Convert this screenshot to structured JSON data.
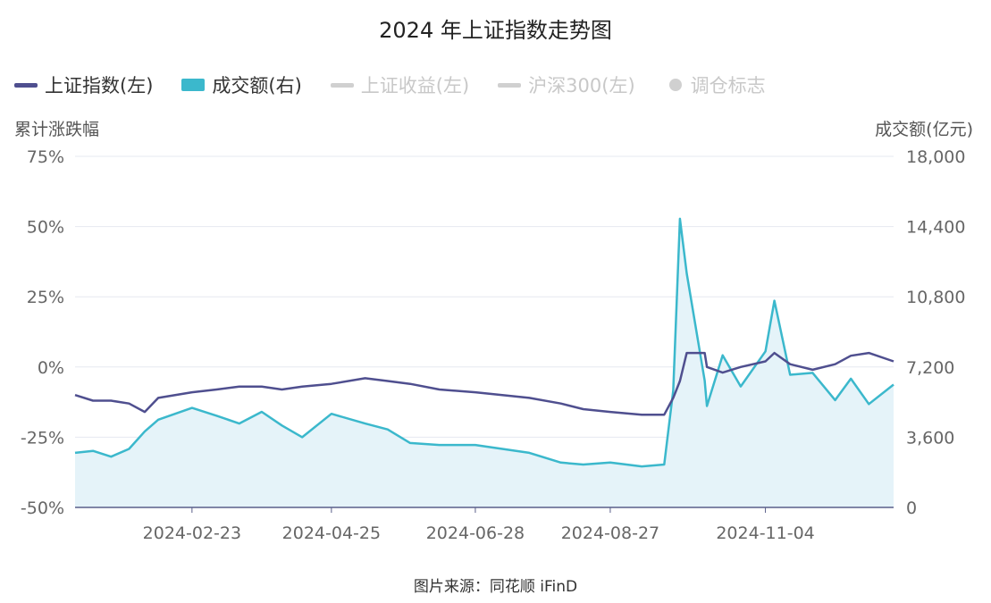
{
  "title": "2024 年上证指数走势图",
  "source": "图片来源：同花顺 iFinD",
  "legend": [
    {
      "label": "上证指数(左)",
      "color": "#4f4f8f",
      "kind": "line",
      "active": true
    },
    {
      "label": "成交额(右)",
      "color": "#3bb8cc",
      "kind": "rect",
      "active": true
    },
    {
      "label": "上证收益(左)",
      "color": "#d0d0d0",
      "kind": "line",
      "active": false
    },
    {
      "label": "沪深300(左)",
      "color": "#d0d0d0",
      "kind": "line",
      "active": false
    },
    {
      "label": "调仓标志",
      "color": "#d0d0d0",
      "kind": "dot",
      "active": false
    }
  ],
  "chart_data": {
    "type": "line",
    "xlabel": "",
    "ylabel_left": "累计涨跌幅",
    "ylabel_right": "成交额(亿元)",
    "ylim_left": [
      -0.5,
      0.75
    ],
    "ylim_right": [
      0,
      18000
    ],
    "left_ticks": [
      "75%",
      "50%",
      "25%",
      "0%",
      "-25%",
      "-50%"
    ],
    "right_ticks": [
      "18,000",
      "14,400",
      "10,800",
      "7,200",
      "3,600",
      "0"
    ],
    "x_tick_labels": [
      "2024-02-23",
      "2024-04-25",
      "2024-06-28",
      "2024-08-27",
      "2024-11-04"
    ],
    "grid": true,
    "x": [
      "2024-01-02",
      "2024-01-10",
      "2024-01-18",
      "2024-01-26",
      "2024-02-02",
      "2024-02-08",
      "2024-02-23",
      "2024-03-05",
      "2024-03-15",
      "2024-03-25",
      "2024-04-03",
      "2024-04-12",
      "2024-04-25",
      "2024-05-10",
      "2024-05-20",
      "2024-05-30",
      "2024-06-12",
      "2024-06-28",
      "2024-07-10",
      "2024-07-22",
      "2024-08-05",
      "2024-08-15",
      "2024-08-27",
      "2024-09-10",
      "2024-09-20",
      "2024-09-24",
      "2024-09-27",
      "2024-09-30",
      "2024-10-08",
      "2024-10-09",
      "2024-10-16",
      "2024-10-24",
      "2024-11-04",
      "2024-11-08",
      "2024-11-15",
      "2024-11-25",
      "2024-12-05",
      "2024-12-12",
      "2024-12-20",
      "2024-12-31"
    ],
    "series": [
      {
        "name": "上证指数(左)",
        "axis": "left",
        "color": "#4f4f8f",
        "values": [
          -0.1,
          -0.12,
          -0.12,
          -0.13,
          -0.16,
          -0.11,
          -0.09,
          -0.08,
          -0.07,
          -0.07,
          -0.08,
          -0.07,
          -0.06,
          -0.04,
          -0.05,
          -0.06,
          -0.08,
          -0.09,
          -0.1,
          -0.11,
          -0.13,
          -0.15,
          -0.16,
          -0.17,
          -0.17,
          -0.11,
          -0.05,
          0.05,
          0.05,
          0.0,
          -0.02,
          0.0,
          0.02,
          0.05,
          0.01,
          -0.01,
          0.01,
          0.04,
          0.05,
          0.02
        ]
      },
      {
        "name": "成交额(右)",
        "axis": "right",
        "color": "#3bb8cc",
        "area": true,
        "values": [
          2800,
          2900,
          2600,
          3000,
          3900,
          4500,
          5100,
          4700,
          4300,
          4900,
          4200,
          3600,
          4800,
          4300,
          4000,
          3300,
          3200,
          3200,
          3000,
          2800,
          2300,
          2200,
          2300,
          2100,
          2200,
          6000,
          14800,
          12000,
          6500,
          5200,
          7800,
          6200,
          8000,
          10600,
          6800,
          6900,
          5500,
          6600,
          5300,
          6300
        ]
      }
    ]
  }
}
